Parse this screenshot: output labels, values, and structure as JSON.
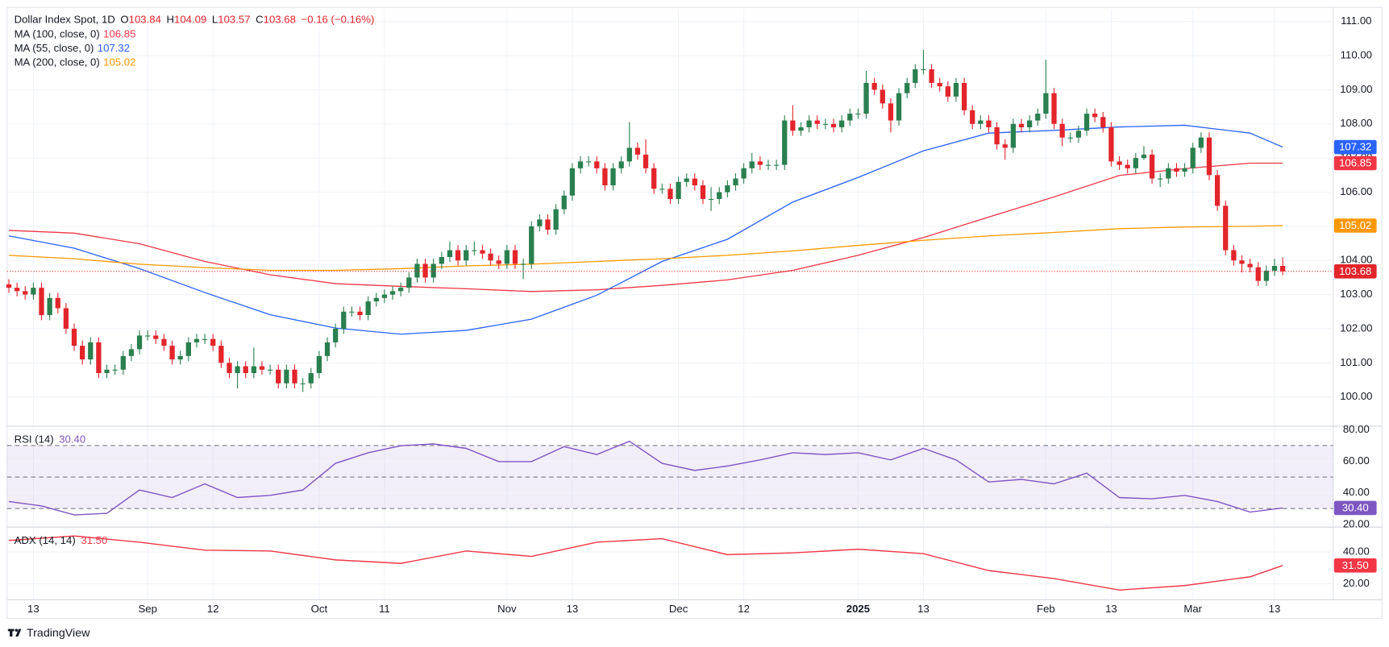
{
  "chart_data": {
    "type": "candlestick",
    "title": "Dollar Index Spot, 1D",
    "ohlc_labels": [
      "O",
      "H",
      "L",
      "C"
    ],
    "change": "−0.16 (−0.16%)",
    "up_color": "#2a7f4f",
    "down_color": "#e3242b",
    "grid": true,
    "brand": "TradingView",
    "categories": [
      null,
      null,
      null,
      "13",
      null,
      null,
      null,
      null,
      null,
      null,
      null,
      null,
      null,
      null,
      null,
      null,
      null,
      "Sep",
      null,
      null,
      null,
      null,
      null,
      null,
      null,
      "12",
      null,
      null,
      null,
      null,
      null,
      null,
      null,
      null,
      null,
      null,
      null,
      null,
      "Oct",
      null,
      null,
      null,
      null,
      null,
      null,
      null,
      "11",
      null,
      null,
      null,
      null,
      null,
      null,
      null,
      null,
      null,
      null,
      null,
      null,
      null,
      null,
      "Nov",
      null,
      null,
      null,
      null,
      null,
      null,
      null,
      "13",
      null,
      null,
      null,
      null,
      null,
      null,
      null,
      null,
      null,
      null,
      null,
      null,
      "Dec",
      null,
      null,
      null,
      null,
      null,
      null,
      null,
      "12",
      null,
      null,
      null,
      null,
      null,
      null,
      null,
      null,
      null,
      null,
      null,
      null,
      null,
      "2025",
      null,
      null,
      null,
      null,
      null,
      null,
      null,
      "13",
      null,
      null,
      null,
      null,
      null,
      null,
      null,
      null,
      null,
      null,
      null,
      null,
      null,
      null,
      "Feb",
      null,
      null,
      null,
      null,
      null,
      null,
      null,
      "13",
      null,
      null,
      null,
      null,
      null,
      null,
      null,
      null,
      null,
      "Mar",
      null,
      null,
      null,
      null,
      null,
      null,
      null,
      null,
      null,
      "13",
      null
    ],
    "open": [
      103.3,
      103.2,
      103.1,
      103.0,
      103.2,
      102.4,
      102.9,
      102.6,
      102.0,
      101.5,
      101.1,
      101.6,
      100.7,
      100.8,
      100.8,
      101.2,
      101.4,
      101.8,
      101.8,
      101.7,
      101.5,
      101.1,
      101.2,
      101.6,
      101.7,
      101.7,
      101.5,
      101.0,
      100.7,
      100.9,
      100.7,
      100.9,
      100.8,
      100.8,
      100.4,
      100.8,
      100.4,
      100.4,
      100.7,
      101.2,
      101.6,
      102.0,
      102.5,
      102.5,
      102.4,
      102.8,
      102.9,
      103.0,
      103.1,
      103.2,
      103.5,
      103.9,
      103.5,
      103.9,
      104.1,
      104.3,
      104.0,
      104.3,
      104.3,
      104.2,
      104.0,
      103.9,
      104.3,
      103.9,
      103.9,
      105.0,
      105.2,
      104.9,
      105.5,
      105.9,
      106.7,
      106.9,
      106.9,
      106.7,
      106.2,
      106.7,
      106.9,
      107.3,
      107.1,
      106.7,
      106.1,
      106.1,
      105.8,
      106.3,
      106.4,
      106.2,
      105.8,
      105.8,
      106.0,
      106.2,
      106.4,
      106.7,
      106.9,
      106.8,
      106.8,
      106.8,
      108.1,
      107.8,
      107.9,
      108.1,
      108.0,
      108.0,
      107.9,
      108.1,
      108.3,
      108.3,
      109.2,
      109.0,
      108.6,
      108.1,
      108.9,
      109.2,
      109.6,
      109.6,
      109.2,
      109.1,
      108.8,
      109.2,
      108.4,
      108.0,
      108.1,
      107.9,
      107.4,
      107.3,
      108.0,
      107.9,
      108.1,
      108.3,
      108.9,
      108.0,
      107.6,
      107.6,
      107.8,
      108.3,
      108.2,
      107.9,
      106.9,
      106.8,
      106.7,
      107.0,
      107.1,
      106.4,
      106.4,
      106.7,
      106.6,
      106.7,
      107.3,
      107.6,
      106.5,
      105.6,
      104.3,
      104.0,
      103.9,
      103.8,
      103.4,
      103.7,
      103.84
    ],
    "high": [
      103.45,
      103.35,
      103.25,
      103.35,
      103.35,
      103.05,
      103.05,
      102.75,
      102.15,
      101.65,
      101.75,
      101.75,
      100.95,
      100.95,
      101.35,
      101.55,
      101.95,
      101.95,
      101.95,
      101.85,
      101.65,
      101.35,
      101.75,
      101.85,
      101.85,
      101.85,
      101.65,
      101.15,
      101.05,
      101.05,
      101.45,
      101.05,
      100.95,
      100.95,
      100.95,
      100.95,
      100.55,
      100.85,
      101.35,
      101.75,
      102.15,
      102.65,
      102.65,
      102.65,
      102.95,
      103.05,
      103.15,
      103.25,
      103.35,
      103.65,
      104.05,
      104.05,
      104.05,
      104.25,
      104.55,
      104.45,
      104.45,
      104.55,
      104.45,
      104.35,
      104.15,
      104.45,
      104.45,
      104.05,
      105.15,
      105.35,
      105.35,
      105.65,
      106.05,
      106.85,
      107.05,
      107.05,
      107.05,
      106.85,
      106.85,
      107.05,
      108.05,
      107.45,
      107.55,
      106.85,
      106.25,
      106.25,
      106.45,
      106.55,
      106.55,
      106.35,
      106.15,
      106.15,
      106.35,
      106.55,
      106.85,
      107.15,
      107.05,
      106.95,
      106.95,
      108.25,
      108.55,
      108.05,
      108.25,
      108.25,
      108.15,
      108.15,
      108.25,
      108.45,
      108.45,
      109.55,
      109.35,
      109.15,
      108.75,
      109.05,
      109.35,
      109.75,
      110.17,
      109.75,
      109.35,
      109.25,
      109.35,
      109.35,
      108.55,
      108.25,
      108.25,
      108.05,
      107.55,
      108.15,
      108.15,
      108.25,
      108.45,
      109.88,
      109.05,
      108.15,
      107.75,
      107.95,
      108.45,
      108.45,
      108.35,
      108.05,
      107.05,
      106.95,
      107.15,
      107.35,
      107.25,
      106.55,
      106.85,
      106.85,
      106.85,
      107.45,
      107.75,
      107.75,
      106.65,
      105.75,
      104.45,
      104.15,
      104.05,
      103.95,
      103.85,
      104.05,
      104.09
    ],
    "low": [
      103.05,
      102.95,
      102.85,
      102.85,
      102.25,
      102.25,
      102.45,
      101.85,
      101.35,
      100.95,
      100.95,
      100.55,
      100.55,
      100.65,
      100.65,
      101.05,
      101.25,
      101.65,
      101.55,
      101.35,
      100.95,
      100.95,
      101.05,
      101.45,
      101.55,
      101.35,
      100.85,
      100.55,
      100.25,
      100.55,
      100.55,
      100.65,
      100.65,
      100.25,
      100.25,
      100.25,
      100.15,
      100.25,
      100.55,
      101.05,
      101.45,
      101.85,
      102.35,
      102.25,
      102.25,
      102.65,
      102.75,
      102.85,
      102.95,
      103.05,
      103.35,
      103.35,
      103.35,
      103.75,
      103.95,
      103.85,
      103.85,
      104.15,
      104.05,
      103.85,
      103.75,
      103.75,
      103.75,
      103.45,
      103.75,
      104.85,
      104.75,
      104.75,
      105.35,
      105.75,
      106.55,
      106.75,
      106.55,
      106.05,
      106.05,
      106.55,
      106.75,
      106.95,
      106.55,
      105.95,
      105.95,
      105.65,
      105.65,
      106.15,
      106.05,
      105.65,
      105.45,
      105.65,
      105.85,
      106.05,
      106.25,
      106.55,
      106.65,
      106.65,
      106.65,
      106.65,
      107.65,
      107.65,
      107.75,
      107.85,
      107.85,
      107.75,
      107.75,
      107.95,
      108.15,
      108.15,
      108.85,
      108.45,
      107.75,
      107.95,
      108.75,
      109.05,
      109.45,
      109.05,
      108.95,
      108.65,
      108.65,
      108.25,
      107.85,
      107.85,
      107.75,
      107.25,
      106.95,
      107.15,
      107.75,
      107.75,
      107.95,
      108.15,
      107.85,
      107.35,
      107.45,
      107.45,
      107.65,
      108.05,
      107.75,
      106.75,
      106.65,
      106.55,
      106.55,
      106.95,
      106.25,
      106.15,
      106.25,
      106.45,
      106.45,
      106.55,
      107.15,
      106.35,
      105.45,
      104.15,
      103.85,
      103.65,
      103.65,
      103.25,
      103.25,
      103.55,
      103.57
    ],
    "close": [
      103.2,
      103.1,
      103.0,
      103.2,
      102.4,
      102.9,
      102.6,
      102.0,
      101.5,
      101.1,
      101.6,
      100.7,
      100.8,
      100.8,
      101.2,
      101.4,
      101.8,
      101.8,
      101.7,
      101.5,
      101.1,
      101.2,
      101.6,
      101.7,
      101.7,
      101.5,
      101.0,
      100.7,
      100.9,
      100.7,
      100.9,
      100.8,
      100.8,
      100.4,
      100.8,
      100.4,
      100.4,
      100.7,
      101.2,
      101.6,
      102.0,
      102.5,
      102.5,
      102.4,
      102.8,
      102.9,
      103.0,
      103.1,
      103.2,
      103.5,
      103.9,
      103.5,
      103.9,
      104.1,
      104.3,
      104.0,
      104.3,
      104.3,
      104.2,
      104.0,
      103.9,
      104.3,
      103.9,
      103.9,
      105.0,
      105.2,
      104.9,
      105.5,
      105.9,
      106.7,
      106.9,
      106.9,
      106.7,
      106.2,
      106.7,
      106.9,
      107.3,
      107.1,
      106.7,
      106.1,
      106.1,
      105.8,
      106.3,
      106.4,
      106.2,
      105.8,
      105.8,
      106.0,
      106.2,
      106.4,
      106.7,
      106.9,
      106.8,
      106.8,
      106.8,
      108.1,
      107.8,
      107.9,
      108.1,
      108.0,
      108.0,
      107.9,
      108.1,
      108.3,
      108.3,
      109.2,
      109.0,
      108.6,
      108.1,
      108.9,
      109.2,
      109.6,
      109.6,
      109.2,
      109.1,
      108.8,
      109.2,
      108.4,
      108.0,
      108.1,
      107.9,
      107.4,
      107.3,
      108.0,
      107.9,
      108.1,
      108.3,
      108.9,
      108.0,
      107.6,
      107.6,
      107.8,
      108.3,
      108.2,
      107.9,
      106.9,
      106.8,
      106.7,
      107.0,
      107.1,
      106.4,
      106.4,
      106.7,
      106.6,
      106.7,
      107.3,
      107.6,
      106.5,
      105.6,
      104.3,
      104.0,
      103.9,
      103.8,
      103.4,
      103.7,
      103.84,
      103.68
    ],
    "ylim": [
      99.17,
      111.36
    ],
    "yticks": [
      {
        "value": 100,
        "label": "100.00"
      },
      {
        "value": 101,
        "label": "101.00"
      },
      {
        "value": 102,
        "label": "102.00"
      },
      {
        "value": 103,
        "label": "103.00"
      },
      {
        "value": 104,
        "label": "104.00"
      },
      {
        "value": 105,
        "label": "105.00"
      },
      {
        "value": 106,
        "label": "106.00"
      },
      {
        "value": 107,
        "label": "107.00"
      },
      {
        "value": 108,
        "label": "108.00"
      },
      {
        "value": 109,
        "label": "109.00"
      },
      {
        "value": 110,
        "label": "110.00"
      },
      {
        "value": 111,
        "label": "111.00"
      }
    ],
    "overlays": [
      {
        "name": "MA (100, close, 0)",
        "color": "#f23645",
        "x": [
          0,
          8,
          16,
          24,
          32,
          40,
          48,
          56,
          64,
          72,
          80,
          88,
          96,
          104,
          112,
          120,
          128,
          136,
          144,
          152,
          156
        ],
        "values": [
          104.88,
          104.8,
          104.49,
          103.97,
          103.58,
          103.32,
          103.24,
          103.17,
          103.09,
          103.14,
          103.27,
          103.43,
          103.71,
          104.15,
          104.67,
          105.27,
          105.86,
          106.49,
          106.69,
          106.85,
          106.85
        ]
      },
      {
        "name": "MA (55, close, 0)",
        "color": "#2962ff",
        "x": [
          0,
          8,
          16,
          24,
          32,
          40,
          48,
          56,
          64,
          72,
          80,
          88,
          96,
          104,
          112,
          120,
          128,
          136,
          144,
          152,
          156
        ],
        "values": [
          104.72,
          104.36,
          103.76,
          103.06,
          102.41,
          102.02,
          101.84,
          101.95,
          102.28,
          102.98,
          103.97,
          104.62,
          105.71,
          106.43,
          107.21,
          107.73,
          107.81,
          107.91,
          107.96,
          107.73,
          107.32
        ]
      },
      {
        "name": "MA (200, close, 0)",
        "color": "#ff9800",
        "x": [
          0,
          8,
          16,
          24,
          32,
          40,
          48,
          56,
          64,
          72,
          80,
          88,
          96,
          104,
          112,
          120,
          128,
          136,
          144,
          152,
          156
        ],
        "values": [
          104.15,
          104.05,
          103.89,
          103.79,
          103.71,
          103.71,
          103.76,
          103.84,
          103.89,
          103.97,
          104.05,
          104.15,
          104.28,
          104.44,
          104.59,
          104.72,
          104.82,
          104.93,
          104.98,
          105.0,
          105.02
        ]
      }
    ],
    "indicators": [
      {
        "name": "RSI (14)",
        "color": "#7e57c2",
        "x": [
          0,
          4,
          8,
          12,
          16,
          20,
          24,
          28,
          32,
          36,
          40,
          44,
          48,
          52,
          56,
          60,
          64,
          68,
          72,
          76,
          80,
          84,
          88,
          92,
          96,
          100,
          104,
          108,
          112,
          116,
          120,
          124,
          128,
          132,
          136,
          140,
          144,
          148,
          152,
          156
        ],
        "values": [
          34.5,
          31.7,
          26,
          27,
          41.8,
          37,
          45.7,
          37,
          38.4,
          41.8,
          58.7,
          65.4,
          69.9,
          71,
          68.2,
          59.8,
          59.8,
          69.3,
          64.3,
          72.7,
          58.7,
          54.2,
          57,
          60.9,
          65.4,
          64.3,
          65.4,
          60.9,
          68.2,
          60.9,
          46.9,
          48.5,
          45.7,
          52.5,
          37,
          36.2,
          38.4,
          34.5,
          27.8,
          30.4
        ],
        "value_labels": [
          null,
          null,
          null,
          null,
          null,
          null,
          null,
          null,
          null,
          null,
          null,
          null,
          null,
          null,
          null,
          null,
          null,
          null,
          null,
          null,
          null,
          null,
          null,
          null,
          null,
          null,
          null,
          null,
          null,
          null,
          null,
          null,
          null,
          null,
          null,
          null,
          null,
          null,
          null,
          "30.40"
        ],
        "ylim": [
          18.8,
          81.7
        ],
        "yticks": [
          {
            "value": 20,
            "label": "20.00"
          },
          {
            "value": 40,
            "label": "40.00"
          },
          {
            "value": 60,
            "label": "60.00"
          },
          {
            "value": 80,
            "label": "80.00"
          }
        ],
        "levels": [
          30,
          50,
          70
        ]
      },
      {
        "name": "ADX (14, 14)",
        "color": "#f23645",
        "x": [
          0,
          8,
          16,
          24,
          32,
          40,
          48,
          56,
          64,
          72,
          80,
          88,
          96,
          104,
          112,
          120,
          128,
          136,
          144,
          152,
          156
        ],
        "values": [
          47.2,
          50,
          46.1,
          41.1,
          40.6,
          35,
          32.8,
          40.6,
          37.2,
          46.1,
          48.3,
          38.3,
          39.4,
          41.7,
          38.9,
          28.3,
          23.3,
          16.1,
          18.9,
          24.4,
          31.5
        ],
        "value_labels": [
          null,
          null,
          null,
          null,
          null,
          null,
          null,
          null,
          null,
          null,
          null,
          null,
          null,
          null,
          null,
          null,
          null,
          null,
          null,
          null,
          "31.50"
        ],
        "ylim": [
          10.56,
          55
        ],
        "yticks": [
          {
            "value": 20,
            "label": "20.00"
          },
          {
            "value": 40,
            "label": "40.00"
          }
        ]
      }
    ]
  }
}
